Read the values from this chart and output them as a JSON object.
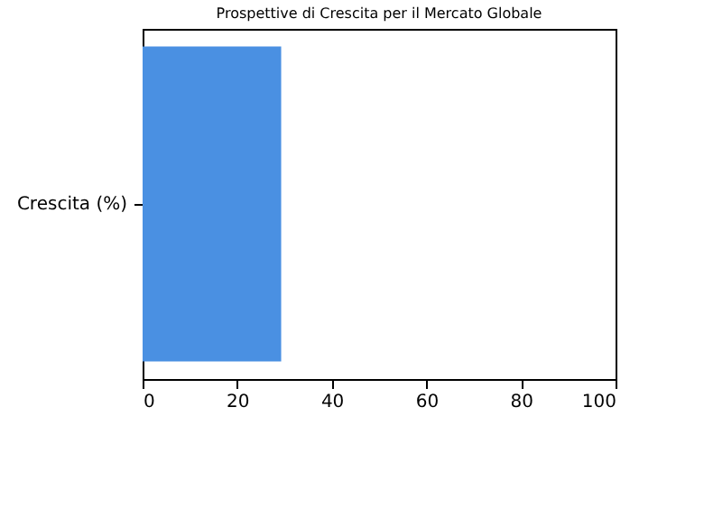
{
  "chart_data": {
    "type": "bar",
    "orientation": "horizontal",
    "title": "Prospettive di Crescita per il Mercato Globale",
    "categories": [
      "Crescita (%)"
    ],
    "values": [
      29.3
    ],
    "color": "#4a90e2",
    "xlim": [
      0,
      100
    ],
    "xticks": [
      0,
      20,
      40,
      60,
      80,
      100
    ],
    "grid": false
  }
}
